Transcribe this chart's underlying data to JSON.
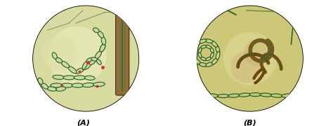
{
  "background_color": "#ffffff",
  "fig_width": 4.74,
  "fig_height": 1.8,
  "dpi": 100,
  "panel_A": {
    "label": "(A)",
    "label_fontsize": 8,
    "label_fontweight": "bold",
    "label_fontstyle": "italic"
  },
  "panel_B": {
    "label": "(B)",
    "label_fontsize": 8,
    "label_fontweight": "bold",
    "label_fontstyle": "italic"
  }
}
